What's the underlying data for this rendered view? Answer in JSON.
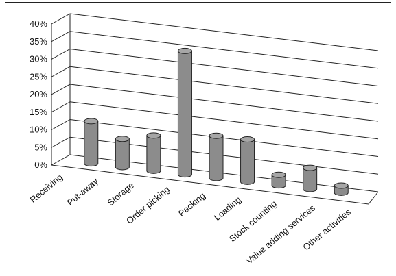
{
  "chart_data": {
    "type": "bar",
    "categories": [
      "Receiving",
      "Put-away",
      "Storage",
      "Order picking",
      "Packing",
      "Loading",
      "Stock counting",
      "Value adding services",
      "Other activities"
    ],
    "values": [
      12,
      8,
      10,
      35,
      12,
      12,
      3,
      6,
      2
    ],
    "y_ticks": [
      "0%",
      "5%",
      "10%",
      "15%",
      "20%",
      "25%",
      "30%",
      "35%",
      "40%"
    ],
    "ylim": [
      0,
      40
    ],
    "grid": true,
    "bar_color": "#8c8c8c",
    "title": "",
    "xlabel": "",
    "ylabel": ""
  }
}
